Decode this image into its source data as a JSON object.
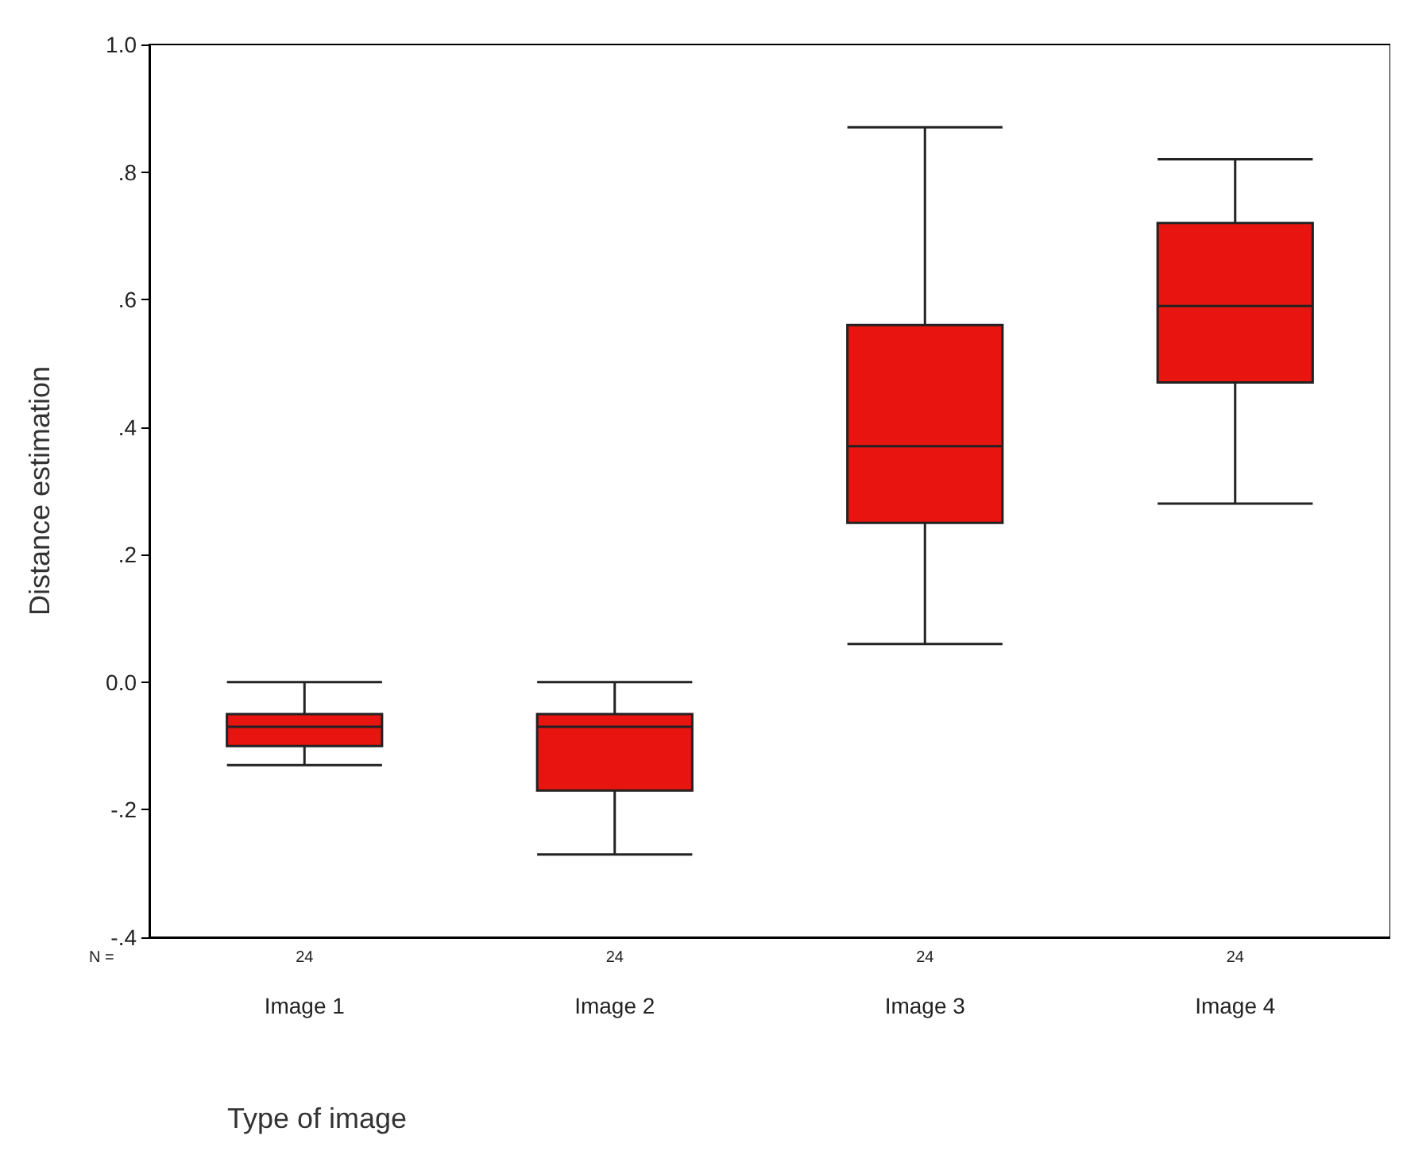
{
  "chart_data": {
    "type": "box",
    "xlabel": "Type of image",
    "ylabel": "Distance estimation",
    "categories": [
      "Image 1",
      "Image 2",
      "Image 3",
      "Image 4"
    ],
    "color": "#e8140f",
    "boxes": [
      {
        "low": -0.13,
        "q1": -0.1,
        "median": -0.07,
        "q3": -0.05,
        "high": 0.0
      },
      {
        "low": -0.27,
        "q1": -0.17,
        "median": -0.07,
        "q3": -0.05,
        "high": 0.0
      },
      {
        "low": 0.06,
        "q1": 0.25,
        "median": 0.37,
        "q3": 0.56,
        "high": 0.87
      },
      {
        "low": 0.28,
        "q1": 0.47,
        "median": 0.59,
        "q3": 0.72,
        "high": 0.82
      }
    ],
    "ylim": [
      -0.4,
      1.0
    ],
    "yticks": [
      {
        "value": -0.4,
        "label": "-.4"
      },
      {
        "value": -0.2,
        "label": "-.2"
      },
      {
        "value": 0,
        "label": "0.0"
      },
      {
        "value": 0.2,
        "label": ".2"
      },
      {
        "value": 0.4,
        "label": ".4"
      },
      {
        "value": 0.6,
        "label": ".6"
      },
      {
        "value": 0.8,
        "label": ".8"
      },
      {
        "value": 1.0,
        "label": "1.0"
      }
    ],
    "grid": false,
    "annotations": [
      "N =",
      "24",
      "24",
      "24",
      "24"
    ]
  }
}
